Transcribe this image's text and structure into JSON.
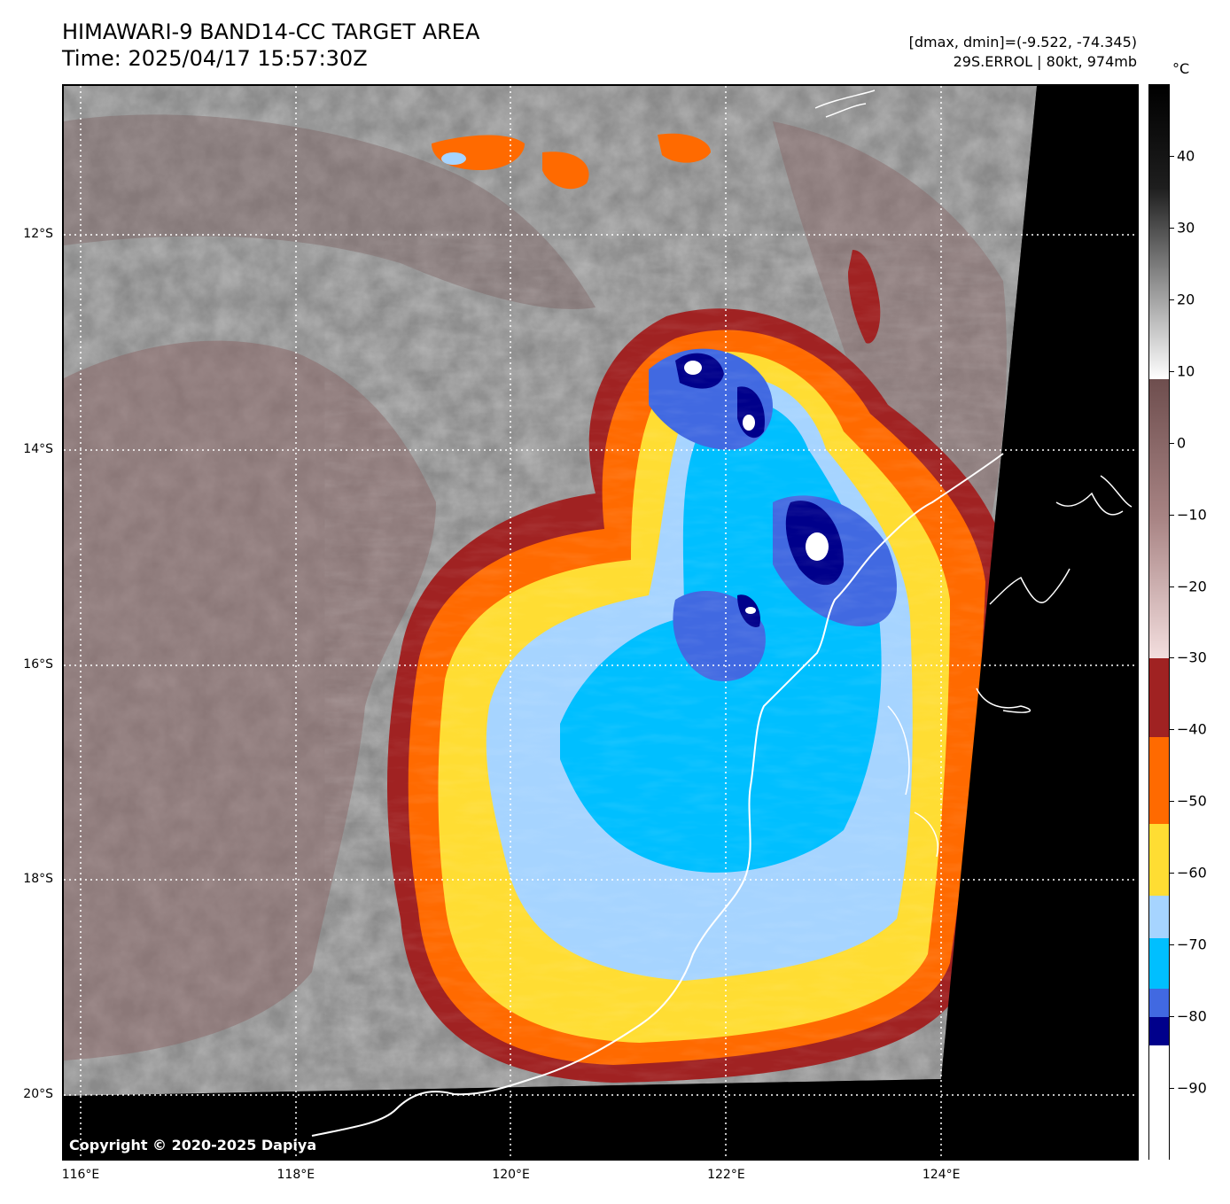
{
  "title": {
    "line1": "HIMAWARI-9 BAND14-CC TARGET AREA",
    "line2": "Time: 2025/04/17 15:57:30Z"
  },
  "info": {
    "line1": "[dmax, dmin]=(-9.522, -74.345)",
    "line2": "29S.ERROL | 80kt, 974mb"
  },
  "map": {
    "lat_labels": [
      {
        "label": "12°S",
        "lat": -12
      },
      {
        "label": "14°S",
        "lat": -14
      },
      {
        "label": "16°S",
        "lat": -16
      },
      {
        "label": "18°S",
        "lat": -18
      },
      {
        "label": "20°S",
        "lat": -20
      }
    ],
    "lon_labels": [
      {
        "label": "116°E",
        "lon": 116
      },
      {
        "label": "118°E",
        "lon": 118
      },
      {
        "label": "120°E",
        "lon": 120
      },
      {
        "label": "122°E",
        "lon": 122
      },
      {
        "label": "124°E",
        "lon": 124
      }
    ],
    "copyright": "Copyright © 2020-2025 Dapiya"
  },
  "colorbar": {
    "unit": "°C",
    "min": -100,
    "max": 50,
    "tick_labels": [
      "40",
      "30",
      "20",
      "10",
      "0",
      "−10",
      "−20",
      "−30",
      "−40",
      "−50",
      "−60",
      "−70",
      "−80",
      "−90"
    ],
    "tick_values": [
      40,
      30,
      20,
      10,
      0,
      -10,
      -20,
      -30,
      -40,
      -50,
      -60,
      -70,
      -80,
      -90
    ],
    "segments": [
      {
        "from": 9,
        "to": 50,
        "kind": "gray"
      },
      {
        "from": -30,
        "to": 9,
        "kind": "brown"
      },
      {
        "from": -41,
        "to": -30,
        "color": "#a02222"
      },
      {
        "from": -53,
        "to": -41,
        "color": "#ff6a00"
      },
      {
        "from": -63,
        "to": -53,
        "color": "#ffdd33"
      },
      {
        "from": -69,
        "to": -63,
        "color": "#a6d4ff"
      },
      {
        "from": -76,
        "to": -69,
        "color": "#00bfff"
      },
      {
        "from": -80,
        "to": -76,
        "color": "#4169e1"
      },
      {
        "from": -84,
        "to": -80,
        "color": "#00008b"
      },
      {
        "from": -100,
        "to": -84,
        "color": "#ffffff"
      }
    ]
  }
}
